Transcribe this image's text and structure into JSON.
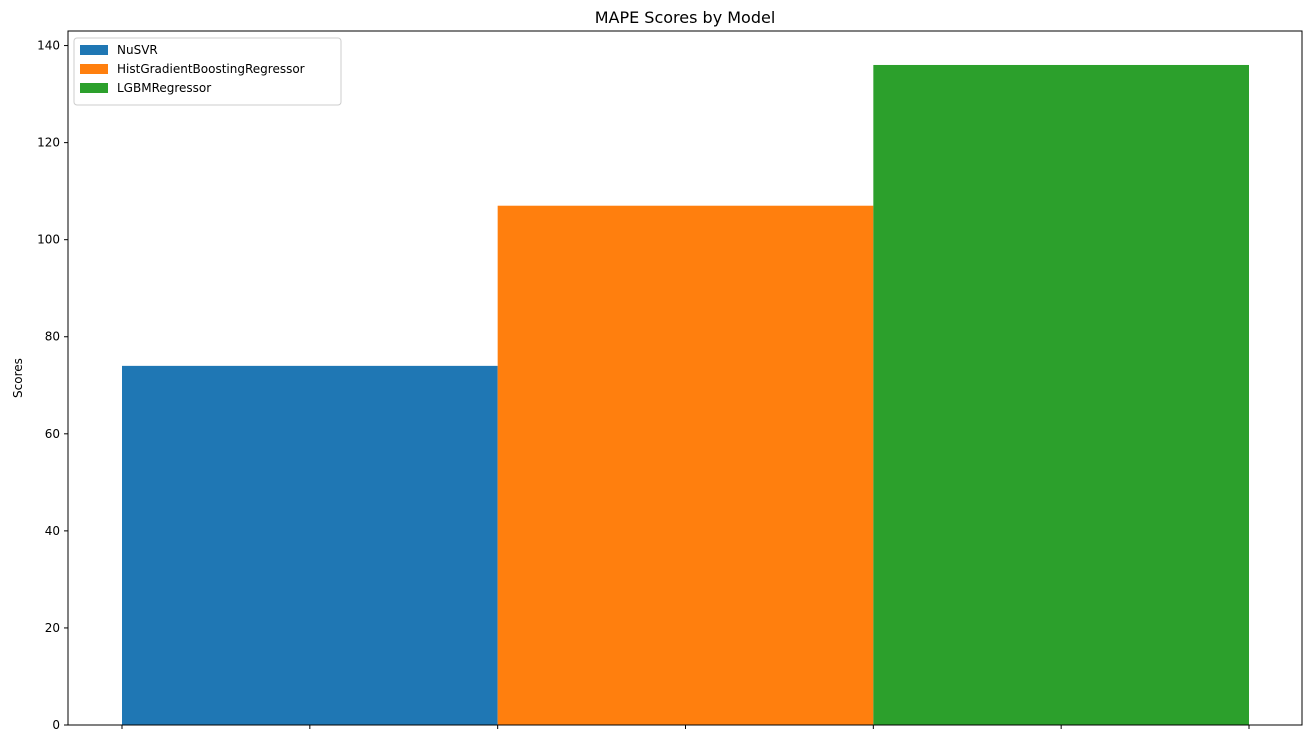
{
  "chart_data": {
    "type": "bar",
    "title": "MAPE Scores by Model",
    "xlabel": "",
    "ylabel": "Scores",
    "ylim": [
      0,
      143
    ],
    "yticks": [
      0,
      20,
      40,
      60,
      80,
      100,
      120,
      140
    ],
    "grid": false,
    "legend_position": "top-left",
    "series": [
      {
        "name": "NuSVR",
        "value": 74,
        "color": "#1f77b4"
      },
      {
        "name": "HistGradientBoostingRegressor",
        "value": 107,
        "color": "#ff7f0e"
      },
      {
        "name": "LGBMRegressor",
        "value": 136,
        "color": "#2ca02c"
      }
    ]
  }
}
